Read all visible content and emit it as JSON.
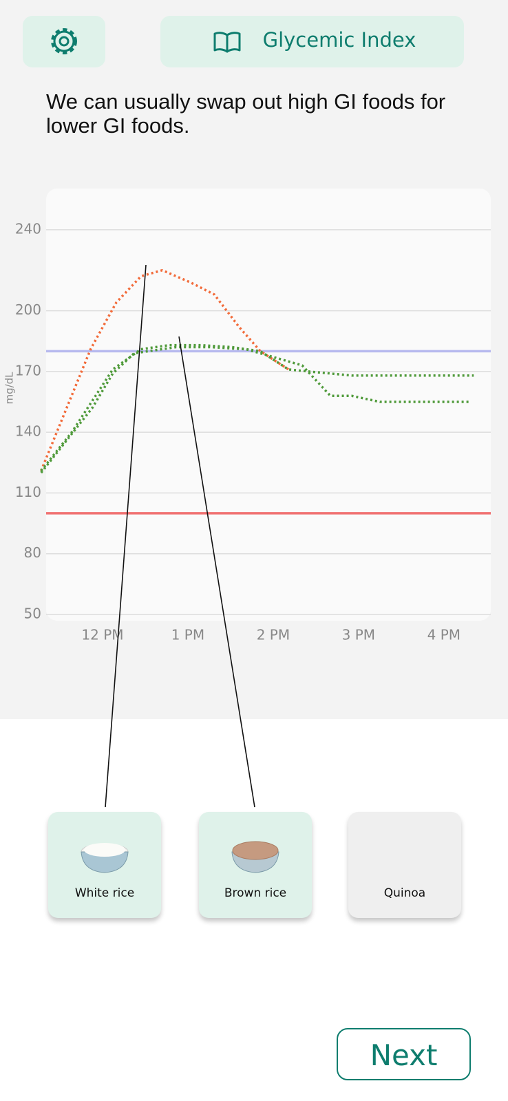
{
  "header": {
    "title": "Glycemic Index"
  },
  "prompt": "We can usually swap out high GI foods for lower GI foods.",
  "chart_data": {
    "type": "line",
    "y_label": "mg/dL",
    "xlim": [
      11.25,
      16.55
    ],
    "xticks": [
      {
        "value": 12,
        "label": "12 PM"
      },
      {
        "value": 13,
        "label": "1 PM"
      },
      {
        "value": 14,
        "label": "2 PM"
      },
      {
        "value": 15,
        "label": "3 PM"
      },
      {
        "value": 16,
        "label": "4 PM"
      }
    ],
    "ylim": [
      50,
      260
    ],
    "yticks": [
      50,
      80,
      110,
      140,
      170,
      200,
      240
    ],
    "grid": true,
    "reference_lines": [
      {
        "value": 180,
        "color": "#b7b9ee"
      },
      {
        "value": 100,
        "color": "#f07272"
      }
    ],
    "series": [
      {
        "name": "White rice",
        "color": "#f26b3a",
        "x": [
          11.28,
          11.86,
          12.16,
          12.45,
          12.7,
          13.03,
          13.31,
          13.6,
          13.85,
          14.18
        ],
        "values": [
          121,
          181,
          204,
          217,
          220,
          214,
          208,
          192,
          180,
          171
        ]
      },
      {
        "name": "Brown rice",
        "color": "#4f9a3a",
        "x": [
          11.28,
          11.64,
          12.12,
          12.45,
          12.78,
          13.15,
          13.52,
          13.85,
          14.18,
          14.42,
          14.92,
          16.35
        ],
        "values": [
          121,
          140,
          171,
          181,
          183,
          183,
          182,
          180,
          171,
          170,
          168,
          168
        ]
      },
      {
        "name": "Quinoa",
        "color": "#4f9a3a",
        "x": [
          11.28,
          11.88,
          12.12,
          12.37,
          12.86,
          13.27,
          13.68,
          13.93,
          14.34,
          14.67,
          14.92,
          15.25,
          16.31
        ],
        "values": [
          120,
          152,
          169,
          179,
          182,
          182,
          181,
          178,
          173,
          158,
          158,
          155,
          155
        ]
      }
    ]
  },
  "next_button": "Next"
}
